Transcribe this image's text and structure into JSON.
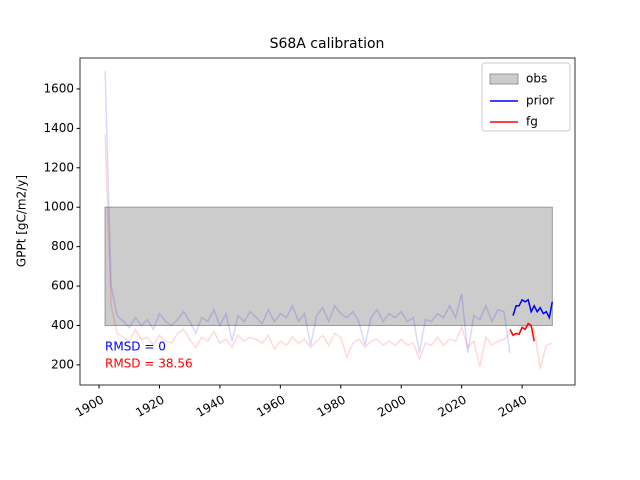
{
  "chart_data": {
    "type": "line",
    "title": "S68A calibration",
    "y_label": "GPPt [gC/m2/y]",
    "xlim": [
      1893.7,
      2057.5
    ],
    "ylim": [
      98,
      1757
    ],
    "xticks": [
      1900,
      1920,
      1940,
      1960,
      1980,
      2000,
      2020,
      2040
    ],
    "yticks": [
      200,
      400,
      600,
      800,
      1000,
      1200,
      1400,
      1600
    ],
    "legend": "upper right",
    "band": {
      "name": "obs",
      "color": "#999999",
      "x": [
        1902,
        2050
      ],
      "lower": 400,
      "upper": 1000
    },
    "series": [
      {
        "name": "prior",
        "color": "#0000ff",
        "x": [
          2037,
          2038,
          2039,
          2040,
          2041,
          2042,
          2043,
          2044,
          2045,
          2046,
          2047,
          2048,
          2049,
          2050
        ],
        "values": [
          450,
          500,
          500,
          530,
          520,
          530,
          470,
          500,
          470,
          490,
          460,
          470,
          440,
          520
        ],
        "history_x": [
          1902,
          1904,
          1906,
          1908,
          1910,
          1912,
          1914,
          1916,
          1918,
          1920,
          1922,
          1924,
          1926,
          1928,
          1930,
          1932,
          1934,
          1936,
          1938,
          1940,
          1942,
          1944,
          1946,
          1948,
          1950,
          1952,
          1954,
          1956,
          1958,
          1960,
          1962,
          1964,
          1966,
          1968,
          1970,
          1972,
          1974,
          1976,
          1978,
          1980,
          1982,
          1984,
          1986,
          1988,
          1990,
          1992,
          1994,
          1996,
          1998,
          2000,
          2002,
          2004,
          2006,
          2008,
          2010,
          2012,
          2014,
          2016,
          2018,
          2020,
          2022,
          2024,
          2026,
          2028,
          2030,
          2032,
          2034,
          2036
        ],
        "history_values": [
          1690,
          600,
          450,
          420,
          390,
          440,
          400,
          430,
          380,
          460,
          420,
          400,
          430,
          470,
          420,
          360,
          440,
          420,
          480,
          400,
          460,
          320,
          450,
          420,
          470,
          440,
          410,
          480,
          420,
          460,
          440,
          500,
          420,
          460,
          300,
          450,
          490,
          420,
          500,
          460,
          440,
          470,
          420,
          300,
          440,
          480,
          420,
          460,
          440,
          470,
          420,
          440,
          260,
          430,
          420,
          460,
          440,
          500,
          440,
          560,
          260,
          450,
          430,
          500,
          420,
          480,
          470,
          260
        ]
      },
      {
        "name": "fg",
        "color": "#ff0000",
        "x": [
          2036,
          2037,
          2038,
          2039,
          2040,
          2041,
          2042,
          2043,
          2044
        ],
        "values": [
          380,
          350,
          360,
          355,
          390,
          380,
          410,
          400,
          320
        ],
        "history_x": [
          1902,
          1904,
          1906,
          1908,
          1910,
          1912,
          1914,
          1916,
          1918,
          1920,
          1922,
          1924,
          1926,
          1928,
          1930,
          1932,
          1934,
          1936,
          1938,
          1940,
          1942,
          1944,
          1946,
          1948,
          1950,
          1952,
          1954,
          1956,
          1958,
          1960,
          1962,
          1964,
          1966,
          1968,
          1970,
          1972,
          1974,
          1976,
          1978,
          1980,
          1982,
          1984,
          1986,
          1988,
          1990,
          1992,
          1994,
          1996,
          1998,
          2000,
          2002,
          2004,
          2006,
          2008,
          2010,
          2012,
          2014,
          2016,
          2018,
          2020,
          2022,
          2024,
          2026,
          2028,
          2030,
          2032,
          2034,
          2036,
          2038,
          2040,
          2042,
          2044,
          2046,
          2048,
          2050
        ],
        "history_values": [
          1370,
          500,
          360,
          340,
          320,
          380,
          330,
          340,
          300,
          350,
          320,
          310,
          360,
          380,
          330,
          290,
          340,
          320,
          370,
          310,
          330,
          290,
          350,
          320,
          340,
          330,
          310,
          350,
          280,
          320,
          300,
          340,
          310,
          330,
          290,
          320,
          350,
          300,
          360,
          340,
          240,
          310,
          330,
          290,
          320,
          330,
          300,
          320,
          300,
          330,
          300,
          310,
          230,
          310,
          300,
          340,
          300,
          330,
          320,
          390,
          290,
          320,
          190,
          340,
          300,
          320,
          330,
          360,
          350,
          390,
          400,
          380,
          180,
          300,
          310
        ]
      }
    ],
    "annotations": [
      {
        "text": "RMSD = 0",
        "color": "#0000ff"
      },
      {
        "text": "RMSD = 38.56",
        "color": "#ff0000"
      }
    ]
  }
}
